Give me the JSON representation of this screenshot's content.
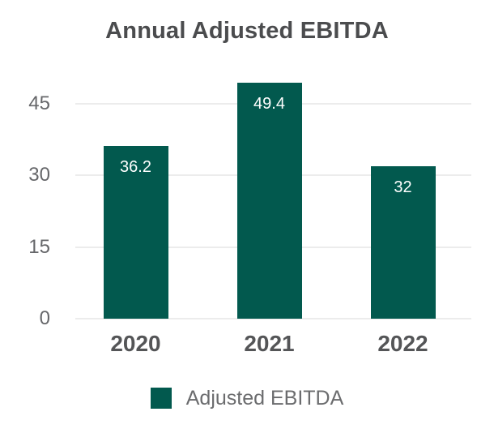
{
  "chart_data": {
    "type": "bar",
    "title": "Annual Adjusted EBITDA",
    "categories": [
      "2020",
      "2021",
      "2022"
    ],
    "series": [
      {
        "name": "Adjusted EBITDA",
        "values": [
          36.2,
          49.4,
          32
        ],
        "color": "#02594e"
      }
    ],
    "value_labels": [
      "36.2",
      "49.4",
      "32"
    ],
    "value_labels_position": "inside-top",
    "xlabel": "",
    "ylabel": "",
    "yticks": [
      0,
      15,
      30,
      45
    ],
    "ylim": [
      0,
      50
    ],
    "grid": true,
    "legend_position": "bottom"
  },
  "legend": {
    "label": "Adjusted EBITDA",
    "swatch_color": "#02594e"
  },
  "colors": {
    "background": "#ffffff",
    "bar": "#02594e",
    "title": "#4b4c4e",
    "y_tick_label": "#66676a",
    "x_category_label": "#545557",
    "gridline": "#ececec",
    "value_label": "#ffffff",
    "legend_text": "#6b6c6e"
  }
}
